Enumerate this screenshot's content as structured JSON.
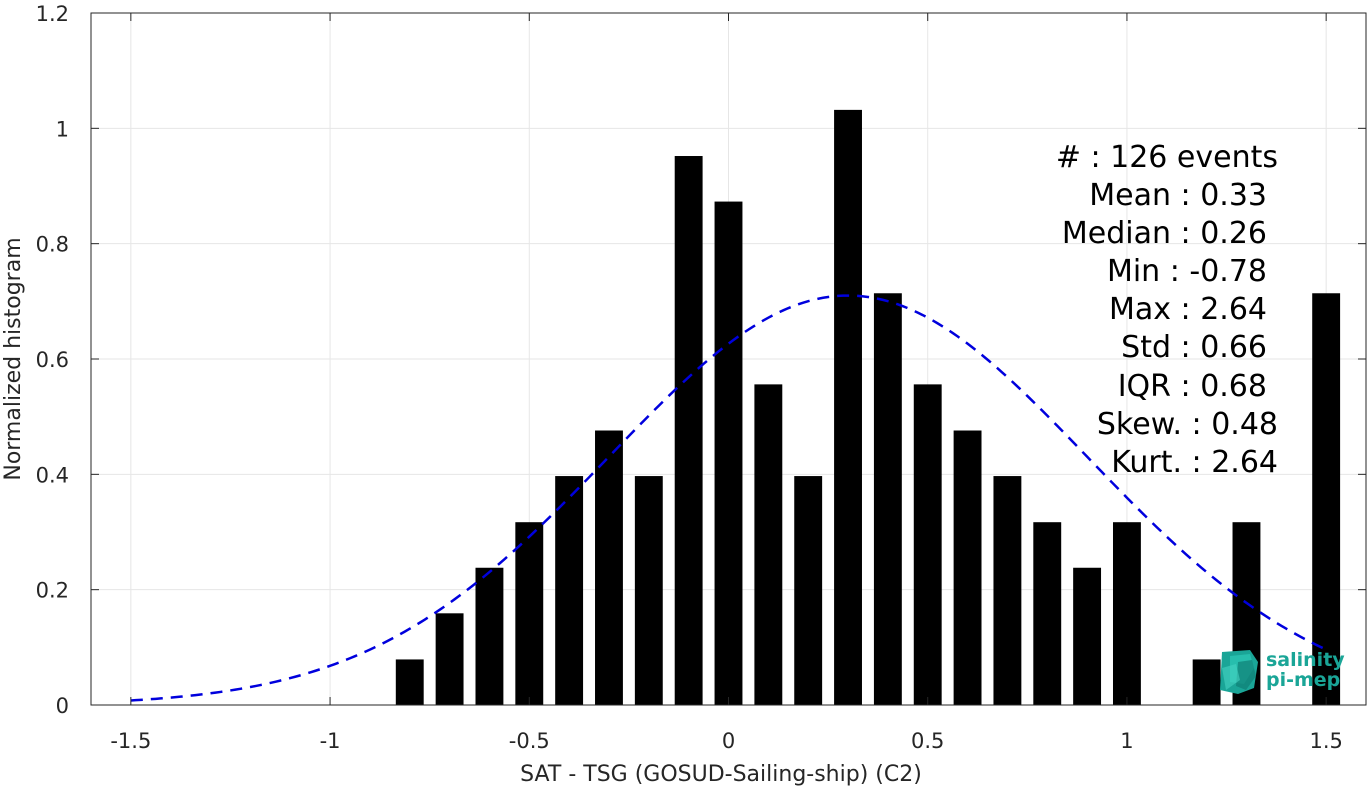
{
  "chart_data": {
    "type": "bar",
    "xlabel": "SAT - TSG (GOSUD-Sailing-ship) (C2)",
    "ylabel": "Normalized histogram",
    "xlim": [
      -1.6,
      1.6
    ],
    "ylim": [
      0,
      1.2
    ],
    "grid": true,
    "x_ticks": [
      -1.5,
      -1,
      -0.5,
      0,
      0.5,
      1,
      1.5
    ],
    "x_tick_labels": [
      "-1.5",
      "-1",
      "-0.5",
      "0",
      "0.5",
      "1",
      "1.5"
    ],
    "y_ticks": [
      0,
      0.2,
      0.4,
      0.6,
      0.8,
      1,
      1.2
    ],
    "y_tick_labels": [
      "0",
      "0.2",
      "0.4",
      "0.6",
      "0.8",
      "1",
      "1.2"
    ],
    "bin_width": 0.1,
    "bar_color": "#000000",
    "bars": [
      {
        "x": -0.8,
        "y": 0.079
      },
      {
        "x": -0.7,
        "y": 0.159
      },
      {
        "x": -0.6,
        "y": 0.238
      },
      {
        "x": -0.5,
        "y": 0.317
      },
      {
        "x": -0.4,
        "y": 0.397
      },
      {
        "x": -0.3,
        "y": 0.476
      },
      {
        "x": -0.2,
        "y": 0.397
      },
      {
        "x": -0.1,
        "y": 0.952
      },
      {
        "x": 0.0,
        "y": 0.873
      },
      {
        "x": 0.1,
        "y": 0.556
      },
      {
        "x": 0.2,
        "y": 0.397
      },
      {
        "x": 0.3,
        "y": 1.032
      },
      {
        "x": 0.4,
        "y": 0.714
      },
      {
        "x": 0.5,
        "y": 0.556
      },
      {
        "x": 0.6,
        "y": 0.476
      },
      {
        "x": 0.7,
        "y": 0.397
      },
      {
        "x": 0.8,
        "y": 0.317
      },
      {
        "x": 0.9,
        "y": 0.238
      },
      {
        "x": 1.0,
        "y": 0.317
      },
      {
        "x": 1.2,
        "y": 0.079
      },
      {
        "x": 1.3,
        "y": 0.317
      },
      {
        "x": 1.5,
        "y": 0.714
      }
    ],
    "fit_curve": {
      "type": "gaussian",
      "mean": 0.3,
      "peak": 0.71,
      "sigma": 0.6,
      "x_range": [
        -1.5,
        1.5
      ],
      "style": "dashed",
      "color": "#0000dd"
    },
    "annotations": [
      "#  : 126 events",
      "Mean : 0.33",
      "Median : 0.26",
      "Min : -0.78",
      "Max : 2.64",
      "Std : 0.66",
      "IQR : 0.68",
      "Skew. : 0.48",
      "Kurt. : 2.64"
    ]
  },
  "logo": {
    "line1": "salinity",
    "line2": "pi-mep",
    "color": "#1aa597"
  }
}
